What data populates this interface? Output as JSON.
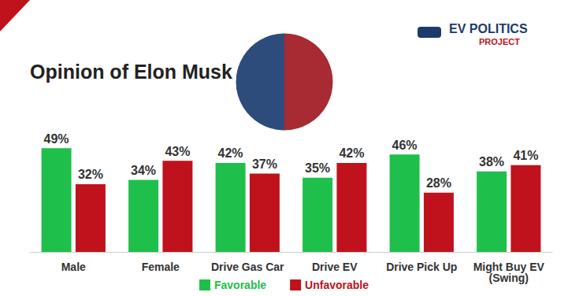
{
  "chart_data": {
    "type": "bar",
    "title": "Opinion of Elon Musk",
    "annotations": [
      "EV POLITICS",
      "PROJECT"
    ],
    "categories": [
      "Male",
      "Female",
      "Drive Gas Car",
      "Drive EV",
      "Drive Pick Up",
      "Might Buy EV\n(Swing)"
    ],
    "series": [
      {
        "name": "Favorable",
        "color": "#1fbf4b",
        "values": [
          49,
          34,
          42,
          35,
          46,
          38
        ],
        "value_labels": [
          "49%",
          "34%",
          "42%",
          "35%",
          "46%",
          "38%"
        ]
      },
      {
        "name": "Unfavorable",
        "color": "#c0121c",
        "values": [
          32,
          43,
          37,
          42,
          28,
          41
        ],
        "value_labels": [
          "32%",
          "43%",
          "37%",
          "42%",
          "28%",
          "41%"
        ]
      }
    ],
    "ylim": [
      0,
      55
    ],
    "yticks": [
      0,
      55
    ],
    "grid": false,
    "legend": "bottom",
    "data_labels": true,
    "tick_labels": "x"
  }
}
